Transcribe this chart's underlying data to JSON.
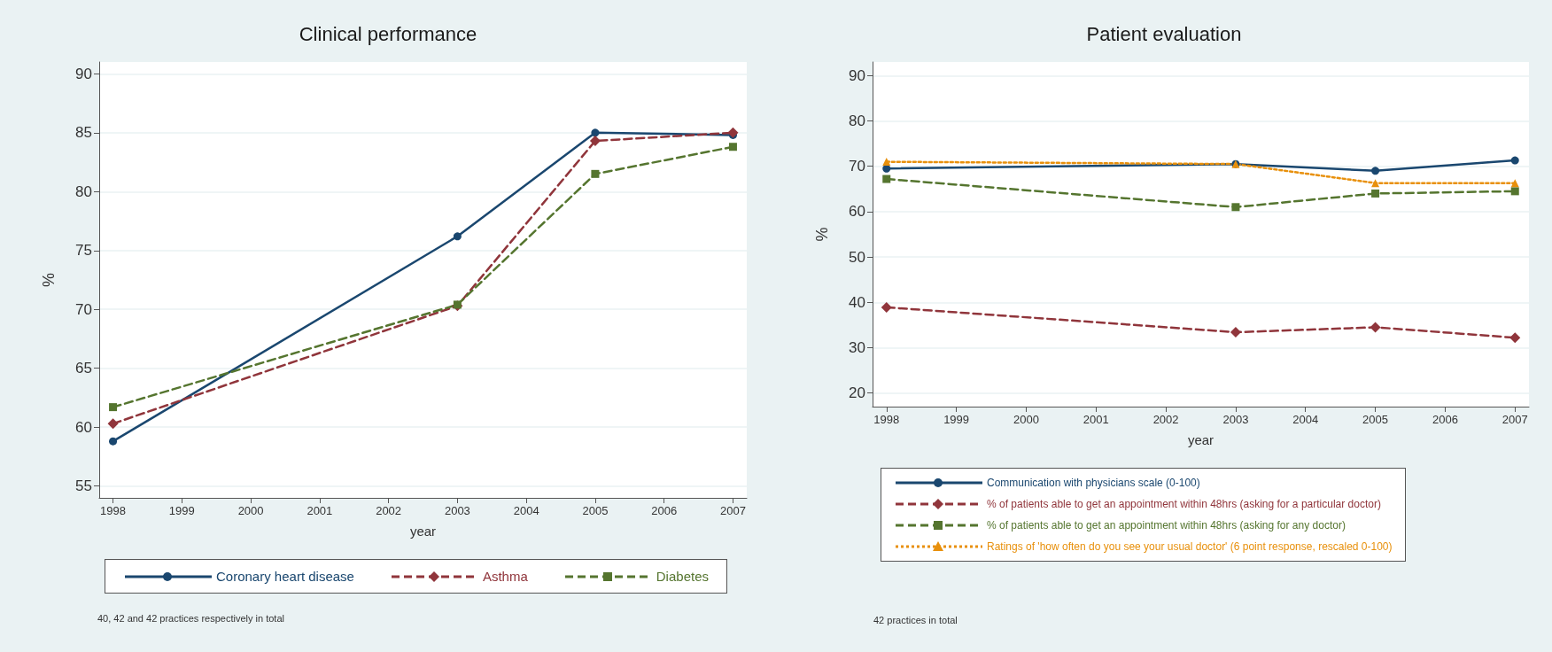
{
  "chart_data": [
    {
      "type": "line",
      "title": "Clinical performance",
      "xlabel": "year",
      "ylabel": "%",
      "x": [
        1998,
        2003,
        2005,
        2007
      ],
      "series": [
        {
          "name": "Coronary heart disease",
          "color": "#1a476f",
          "values": [
            58.8,
            76.2,
            85.0,
            84.8
          ],
          "marker": "circle",
          "line_style": "solid"
        },
        {
          "name": "Asthma",
          "color": "#90353b",
          "values": [
            60.3,
            70.3,
            84.3,
            85.0
          ],
          "marker": "diamond",
          "line_style": "dashed"
        },
        {
          "name": "Diabetes",
          "color": "#55752f",
          "values": [
            61.7,
            70.4,
            81.5,
            83.8
          ],
          "marker": "square",
          "line_style": "dashed"
        }
      ],
      "xlim": [
        1997.8,
        2007.2
      ],
      "xticks": [
        1998,
        1999,
        2000,
        2001,
        2002,
        2003,
        2004,
        2005,
        2006,
        2007
      ],
      "ylim": [
        54,
        91
      ],
      "yticks": [
        55,
        60,
        65,
        70,
        75,
        80,
        85,
        90
      ],
      "grid": "y",
      "legend": "bottom",
      "annotations": [
        "40, 42 and 42 practices respectively in total"
      ]
    },
    {
      "type": "line",
      "title": "Patient evaluation",
      "xlabel": "year",
      "ylabel": "%",
      "x": [
        1998,
        2003,
        2005,
        2007
      ],
      "series": [
        {
          "name": "Communication with physicians scale (0-100)",
          "color": "#1a476f",
          "values": [
            69.5,
            70.5,
            69.0,
            71.3
          ],
          "marker": "circle",
          "line_style": "solid"
        },
        {
          "name": "% of patients able to get an appointment within 48hrs (asking for a particular doctor)",
          "color": "#90353b",
          "values": [
            38.9,
            33.4,
            34.5,
            32.2
          ],
          "marker": "diamond",
          "line_style": "dashed"
        },
        {
          "name": "% of patients able to get an appointment within 48hrs (asking for any doctor)",
          "color": "#55752f",
          "values": [
            67.2,
            61.0,
            64.0,
            64.5
          ],
          "marker": "square",
          "line_style": "dashed"
        },
        {
          "name": "Ratings of 'how often do you see your usual doctor' (6 point response, rescaled 0-100)",
          "color": "#e8900c",
          "values": [
            71.0,
            70.5,
            66.3,
            66.3
          ],
          "marker": "triangle",
          "line_style": "dotted"
        }
      ],
      "xlim": [
        1997.8,
        2007.2
      ],
      "xticks": [
        1998,
        1999,
        2000,
        2001,
        2002,
        2003,
        2004,
        2005,
        2006,
        2007
      ],
      "ylim": [
        17,
        93
      ],
      "yticks": [
        20,
        30,
        40,
        50,
        60,
        70,
        80,
        90
      ],
      "grid": "y",
      "legend": "bottom",
      "annotations": [
        "42 practices in total"
      ]
    }
  ]
}
